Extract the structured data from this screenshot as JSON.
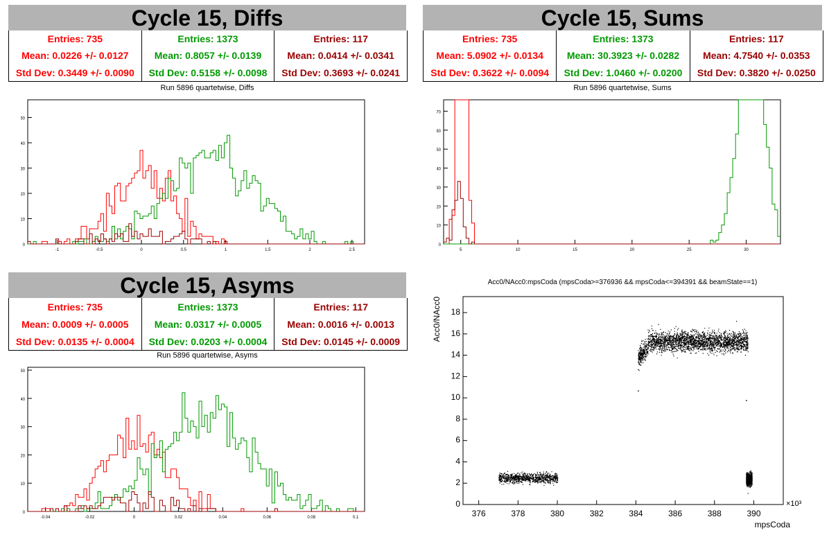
{
  "colors": {
    "red": "#ff0000",
    "green": "#009900",
    "darkred": "#990000",
    "black": "#000000"
  },
  "panels": {
    "diffs": {
      "title": "Cycle 15, Diffs",
      "caption": "Run 5896 quartetwise, Diffs",
      "stats": [
        {
          "entries": "Entries: 735",
          "mean": "Mean: 0.0226 +/- 0.0127",
          "std": "Std Dev: 0.3449 +/- 0.0090",
          "color": "#ff0000"
        },
        {
          "entries": "Entries: 1373",
          "mean": "Mean: 0.8057 +/- 0.0139",
          "std": "Std Dev: 0.5158 +/- 0.0098",
          "color": "#009900"
        },
        {
          "entries": "Entries: 117",
          "mean": "Mean: 0.0414 +/- 0.0341",
          "std": "Std Dev: 0.3693 +/- 0.0241",
          "color": "#990000"
        }
      ]
    },
    "sums": {
      "title": "Cycle 15, Sums",
      "caption": "Run 5896 quartetwise, Sums",
      "stats": [
        {
          "entries": "Entries: 735",
          "mean": "Mean: 5.0902 +/- 0.0134",
          "std": "Std Dev: 0.3622 +/- 0.0094",
          "color": "#ff0000"
        },
        {
          "entries": "Entries: 1373",
          "mean": "Mean: 30.3923 +/- 0.0282",
          "std": "Std Dev: 1.0460 +/- 0.0200",
          "color": "#009900"
        },
        {
          "entries": "Entries: 117",
          "mean": "Mean: 4.7540 +/- 0.0353",
          "std": "Std Dev: 0.3820 +/- 0.0250",
          "color": "#990000"
        }
      ]
    },
    "asyms": {
      "title": "Cycle 15, Asyms",
      "caption": "Run 5896 quartetwise, Asyms",
      "stats": [
        {
          "entries": "Entries: 735",
          "mean": "Mean: 0.0009 +/- 0.0005",
          "std": "Std Dev: 0.0135 +/- 0.0004",
          "color": "#ff0000"
        },
        {
          "entries": "Entries: 1373",
          "mean": "Mean: 0.0317 +/- 0.0005",
          "std": "Std Dev: 0.0203 +/- 0.0004",
          "color": "#009900"
        },
        {
          "entries": "Entries: 117",
          "mean": "Mean: 0.0016 +/- 0.0013",
          "std": "Std Dev: 0.0145 +/- 0.0009",
          "color": "#990000"
        }
      ]
    },
    "scatter": {
      "title": "Acc0/NAcc0:mpsCoda (mpsCoda>=376936 && mpsCoda<=394391 && beamState==1)"
    }
  },
  "chart_data": [
    {
      "type": "histogram",
      "title": "Run 5896 quartetwise, Diffs",
      "xlim": [
        -1.35,
        2.65
      ],
      "ylim": [
        0,
        57
      ],
      "xticks": [
        "-1",
        "-0.5",
        "0",
        "0.5",
        "1",
        "1.5",
        "2",
        "2.5"
      ],
      "yticks": [
        "0",
        "10",
        "20",
        "30",
        "40",
        "50"
      ],
      "series": [
        {
          "entries": 735,
          "mean": 0.0226,
          "std": 0.3449,
          "color": "#ff0000"
        },
        {
          "entries": 1373,
          "mean": 0.8057,
          "std": 0.5158,
          "color": "#009900"
        },
        {
          "entries": 117,
          "mean": 0.0414,
          "std": 0.3693,
          "color": "#990000"
        }
      ]
    },
    {
      "type": "histogram",
      "title": "Run 5896 quartetwise, Sums",
      "xlim": [
        3.5,
        33
      ],
      "ylim": [
        0,
        76
      ],
      "xticks": [
        "5",
        "10",
        "15",
        "20",
        "25",
        "30"
      ],
      "yticks": [
        "0",
        "10",
        "20",
        "30",
        "40",
        "50",
        "60",
        "70"
      ],
      "series": [
        {
          "entries": 735,
          "mean": 5.0902,
          "std": 0.3622,
          "color": "#ff0000"
        },
        {
          "entries": 1373,
          "mean": 30.3923,
          "std": 1.046,
          "color": "#009900"
        },
        {
          "entries": 117,
          "mean": 4.754,
          "std": 0.382,
          "color": "#990000"
        }
      ]
    },
    {
      "type": "histogram",
      "title": "Run 5896 quartetwise, Asyms",
      "xlim": [
        -0.048,
        0.104
      ],
      "ylim": [
        0,
        51
      ],
      "xticks": [
        "-0.04",
        "-0.02",
        "0",
        "0.02",
        "0.04",
        "0.06",
        "0.08",
        "0.1"
      ],
      "yticks": [
        "0",
        "10",
        "20",
        "30",
        "40",
        "50"
      ],
      "series": [
        {
          "entries": 735,
          "mean": 0.0009,
          "std": 0.0135,
          "color": "#ff0000"
        },
        {
          "entries": 1373,
          "mean": 0.0317,
          "std": 0.0203,
          "color": "#009900"
        },
        {
          "entries": 117,
          "mean": 0.0016,
          "std": 0.0145,
          "color": "#990000"
        }
      ]
    },
    {
      "type": "scatter",
      "title": "Acc0/NAcc0:mpsCoda (mpsCoda>=376936 && mpsCoda<=394391 && beamState==1)",
      "xlabel": "mpsCoda",
      "ylabel": "Acc0/NAcc0",
      "xscale": "×10³",
      "xlim": [
        375.2,
        391.5
      ],
      "ylim": [
        0,
        19.5
      ],
      "xticks": [
        "376",
        "378",
        "380",
        "382",
        "384",
        "386",
        "388",
        "390"
      ],
      "yticks": [
        "0",
        "2",
        "4",
        "6",
        "8",
        "10",
        "12",
        "14",
        "16",
        "18"
      ],
      "clusters": [
        {
          "x": [
            377,
            380
          ],
          "y_mean": 2.5,
          "y_spread": 0.45
        },
        {
          "x": [
            384.1,
            389.7
          ],
          "y_mean": 15.3,
          "y_spread": 0.9
        },
        {
          "x": [
            389.6,
            389.9
          ],
          "y_mean": 2.4,
          "y_spread": 0.55
        }
      ],
      "outliers": [
        [
          384.1,
          10.7
        ],
        [
          389.6,
          9.8
        ]
      ]
    }
  ]
}
